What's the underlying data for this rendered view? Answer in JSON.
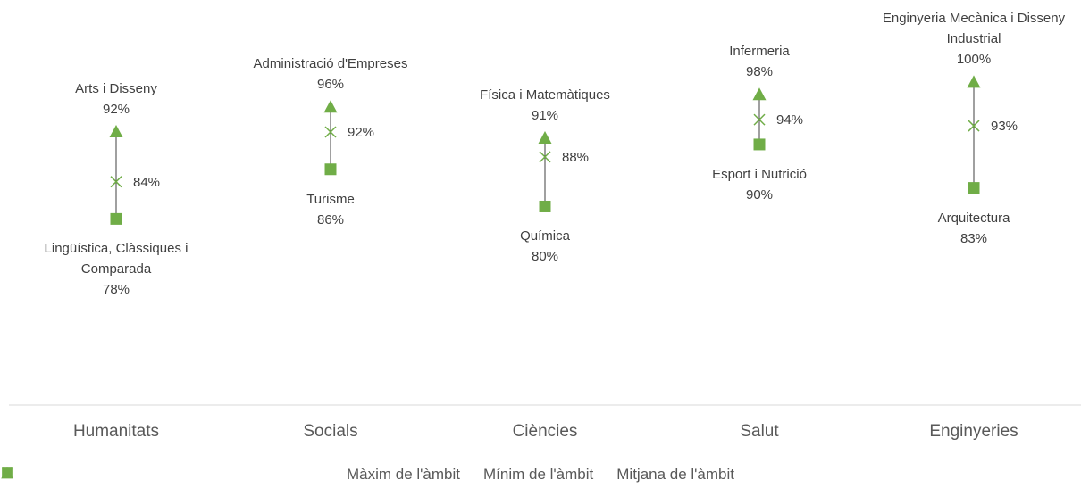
{
  "chart_data": {
    "type": "high-low",
    "categories": [
      "Humanitats",
      "Socials",
      "Ciències",
      "Salut",
      "Enginyeries"
    ],
    "ylim": [
      48,
      113
    ],
    "series": [
      {
        "name": "Màxim de l'àmbit",
        "color": "#70ad47",
        "marker": "triangle",
        "values": [
          92,
          96,
          91,
          98,
          100
        ],
        "value_labels": [
          "92%",
          "96%",
          "91%",
          "98%",
          "100%"
        ],
        "point_labels": [
          "Arts i Disseny",
          "Administració d'Empreses",
          "Física i Matemàtiques",
          "Infermeria",
          "Enginyeria Mecànica i Disseny Industrial"
        ]
      },
      {
        "name": "Mínim de l'àmbit",
        "color": "#70ad47",
        "marker": "square",
        "values": [
          78,
          86,
          80,
          90,
          83
        ],
        "value_labels": [
          "78%",
          "86%",
          "80%",
          "90%",
          "83%"
        ],
        "point_labels": [
          "Lingüística, Clàssiques i Comparada",
          "Turisme",
          "Química",
          "Esport i Nutrició",
          "Arquitectura"
        ]
      },
      {
        "name": "Mitjana de l'àmbit",
        "color": "#70ad47",
        "marker": "x",
        "values": [
          84,
          92,
          88,
          94,
          93
        ],
        "value_labels": [
          "84%",
          "92%",
          "88%",
          "94%",
          "93%"
        ]
      }
    ]
  }
}
